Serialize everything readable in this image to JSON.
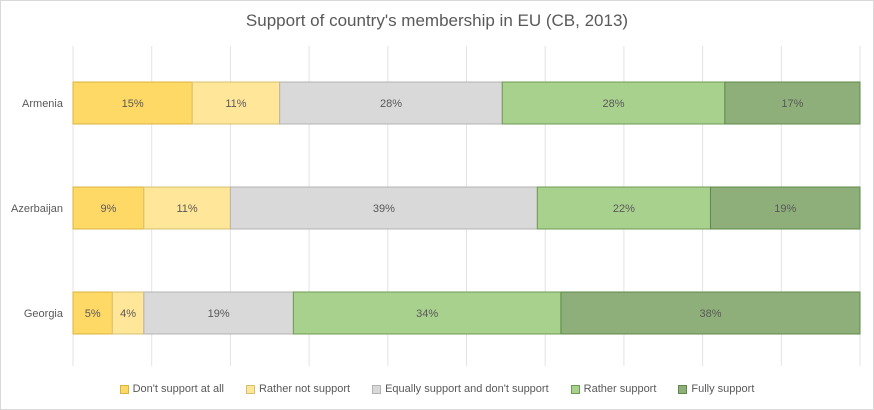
{
  "chart_data": {
    "type": "bar",
    "orientation": "horizontal",
    "stacked": true,
    "title": "Support of country's membership in EU (CB, 2013)",
    "categories": [
      "Armenia",
      "Azerbaijan",
      "Georgia"
    ],
    "series": [
      {
        "name": "Don't support at all",
        "color": "#ffd966",
        "values": [
          15,
          9,
          5
        ],
        "labels": [
          "15%",
          "9%",
          "5%"
        ]
      },
      {
        "name": "Rather not support",
        "color": "#ffe699",
        "values": [
          11,
          11,
          4
        ],
        "labels": [
          "11%",
          "11%",
          "4%"
        ]
      },
      {
        "name": "Equally support and don't support",
        "color": "#d9d9d9",
        "values": [
          28,
          39,
          19
        ],
        "labels": [
          "28%",
          "39%",
          "19%"
        ]
      },
      {
        "name": "Rather support",
        "color": "#a9d18e",
        "values": [
          28,
          22,
          34
        ],
        "labels": [
          "28%",
          "22%",
          "34%"
        ]
      },
      {
        "name": "Fully support",
        "color": "#8faf7a",
        "values": [
          17,
          19,
          38
        ],
        "labels": [
          "17%",
          "19%",
          "38%"
        ]
      }
    ],
    "xlim": [
      0,
      100
    ],
    "grid": true,
    "legend_position": "bottom"
  }
}
